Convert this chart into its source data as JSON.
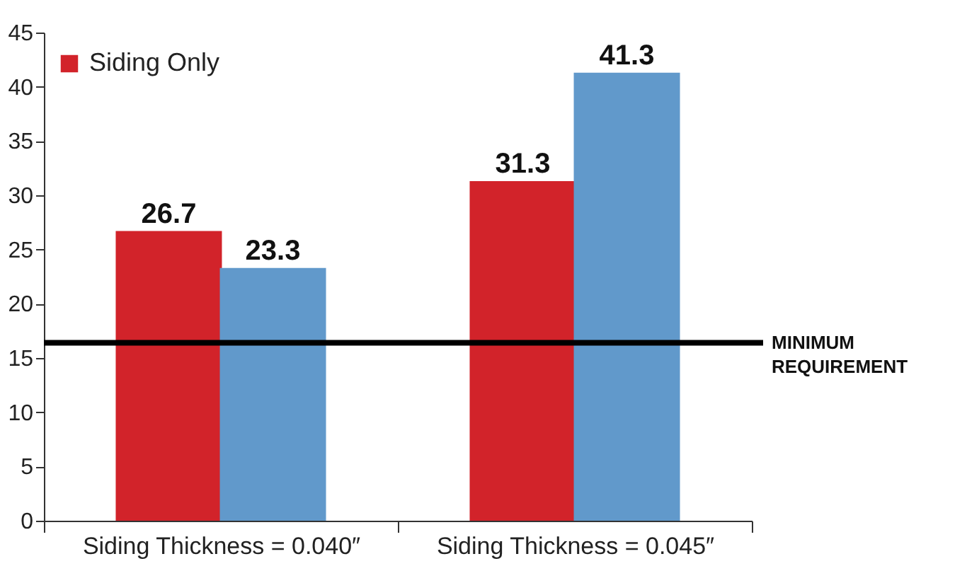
{
  "chart_data": {
    "type": "bar",
    "categories": [
      "Siding Thickness = 0.040″",
      "Siding Thickness = 0.045″"
    ],
    "series": [
      {
        "name": "Siding Only",
        "color": "#d2232a",
        "values": [
          26.7,
          31.3
        ]
      },
      {
        "color": "#6199cb",
        "values": [
          23.3,
          41.3
        ]
      }
    ],
    "ylim": [
      0,
      45
    ],
    "yticks": [
      0,
      5,
      10,
      15,
      20,
      25,
      30,
      35,
      40,
      45
    ],
    "grid": false,
    "data_labels": true,
    "legend": "top left",
    "ref_lines": [
      {
        "axis": "y",
        "value": 16.4,
        "label": "MINIMUM REQUIREMENT",
        "color": "#000000"
      }
    ]
  }
}
